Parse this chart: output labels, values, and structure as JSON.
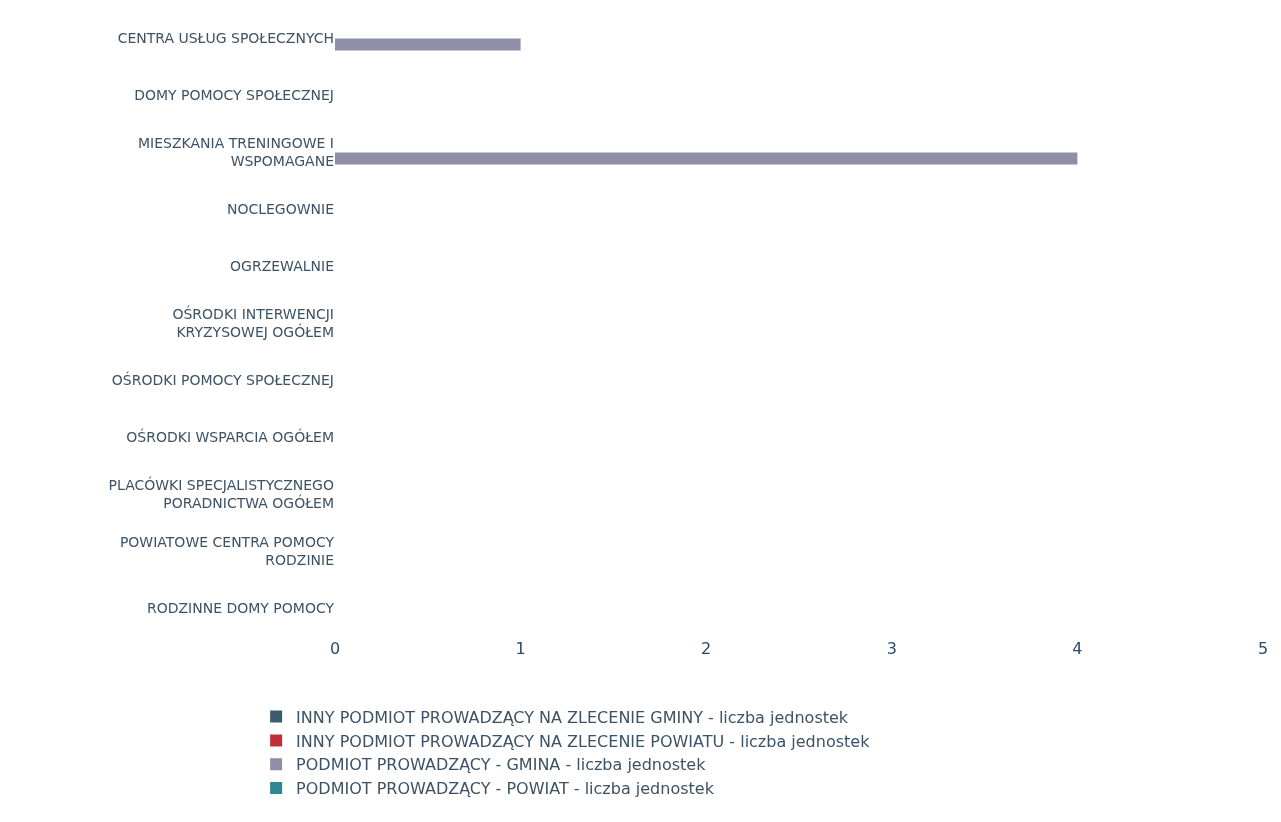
{
  "chart_data": {
    "type": "bar",
    "orientation": "horizontal",
    "categories": [
      "CENTRA USŁUG SPOŁECZNYCH",
      "DOMY POMOCY SPOŁECZNEJ",
      "MIESZKANIA TRENINGOWE I WSPOMAGANE",
      "NOCLEGOWNIE",
      "OGRZEWALNIE",
      "OŚRODKI INTERWENCJI KRYZYSOWEJ OGÓŁEM",
      "OŚRODKI POMOCY SPOŁECZNEJ",
      "OŚRODKI WSPARCIA OGÓŁEM",
      "PLACÓWKI SPECJALISTYCZNEGO PORADNICTWA OGÓŁEM",
      "POWIATOWE CENTRA POMOCY RODZINIE",
      "RODZINNE DOMY POMOCY"
    ],
    "series": [
      {
        "name": "INNY PODMIOT PROWADZĄCY NA ZLECENIE GMINY - liczba jednostek",
        "color": "#3d5b6e",
        "values": [
          null,
          null,
          null,
          null,
          null,
          null,
          null,
          null,
          null,
          null,
          null
        ]
      },
      {
        "name": "INNY PODMIOT PROWADZĄCY NA ZLECENIE POWIATU - liczba jednostek",
        "color": "#c0303a",
        "values": [
          null,
          null,
          null,
          null,
          null,
          null,
          null,
          null,
          null,
          null,
          null
        ]
      },
      {
        "name": "PODMIOT PROWADZĄCY - GMINA - liczba jednostek",
        "color": "#8e8fa6",
        "values": [
          1,
          null,
          4,
          null,
          null,
          null,
          null,
          null,
          null,
          null,
          null
        ]
      },
      {
        "name": "PODMIOT PROWADZĄCY - POWIAT - liczba jednostek",
        "color": "#2f8793",
        "values": [
          null,
          null,
          null,
          null,
          null,
          null,
          null,
          null,
          null,
          null,
          null
        ]
      }
    ],
    "xlim": [
      0,
      5
    ],
    "xticks": [
      0,
      1,
      2,
      3,
      4,
      5
    ],
    "legend": "bottom"
  }
}
